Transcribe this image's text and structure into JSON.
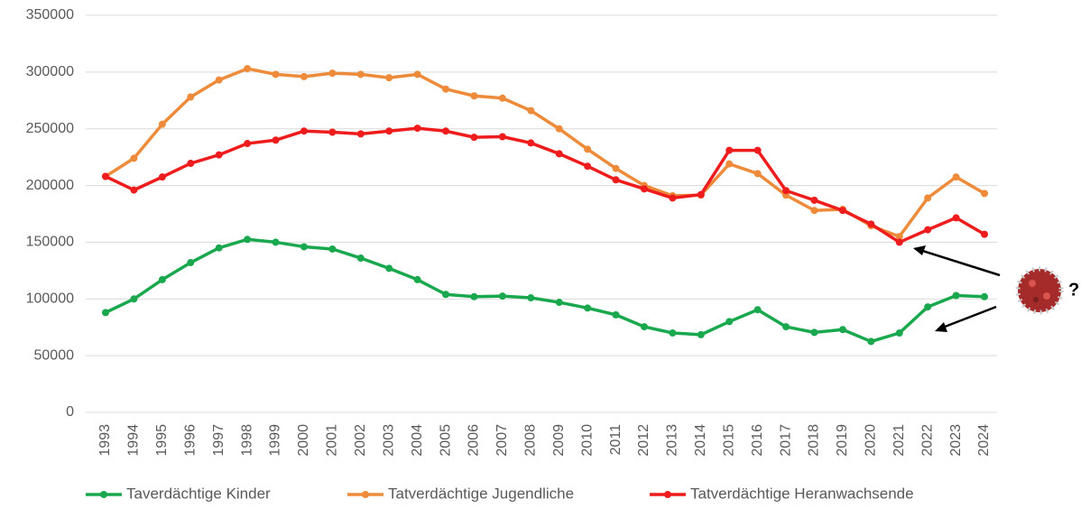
{
  "chart_data": {
    "type": "line",
    "categories": [
      "1993",
      "1994",
      "1995",
      "1996",
      "1997",
      "1998",
      "1999",
      "2000",
      "2001",
      "2002",
      "2003",
      "2004",
      "2005",
      "2006",
      "2007",
      "2008",
      "2009",
      "2010",
      "2011",
      "2012",
      "2013",
      "2014",
      "2015",
      "2016",
      "2017",
      "2018",
      "2019",
      "2020",
      "2021",
      "2022",
      "2023",
      "2024"
    ],
    "series": [
      {
        "name": "Taverdächtige Kinder",
        "color": "#1aa84f",
        "values": [
          88000,
          100000,
          117000,
          132000,
          145000,
          152500,
          150000,
          146000,
          144000,
          136000,
          127000,
          117000,
          104000,
          102000,
          102500,
          101000,
          97000,
          92000,
          86000,
          75500,
          70000,
          68500,
          80000,
          90500,
          75500,
          70500,
          73000,
          62500,
          70000,
          93000,
          103000,
          102000
        ]
      },
      {
        "name": "Tatverdächtige Jugendliche",
        "color": "#ed8b3a",
        "values": [
          208000,
          224000,
          254000,
          278000,
          293000,
          303000,
          298000,
          296000,
          299000,
          298000,
          295000,
          298000,
          285000,
          279000,
          277000,
          266000,
          250000,
          232000,
          215000,
          200000,
          191000,
          191500,
          219000,
          210500,
          191500,
          178000,
          179000,
          164500,
          155000,
          189000,
          207500,
          193000
        ]
      },
      {
        "name": "Tatverdächtige Heranwachsende",
        "color": "#ee1c1c",
        "values": [
          208000,
          196000,
          207500,
          219500,
          227000,
          237000,
          240000,
          248000,
          247000,
          245500,
          248000,
          250500,
          248000,
          242500,
          243000,
          237500,
          228000,
          217000,
          205000,
          197000,
          189000,
          192000,
          231000,
          231000,
          195500,
          187000,
          178000,
          166000,
          150000,
          161000,
          171500,
          157000
        ]
      }
    ],
    "ylim": [
      0,
      350000
    ],
    "yticks": [
      0,
      50000,
      100000,
      150000,
      200000,
      250000,
      300000,
      350000
    ],
    "grid": true,
    "legend": "bottom",
    "annotation": "?"
  }
}
